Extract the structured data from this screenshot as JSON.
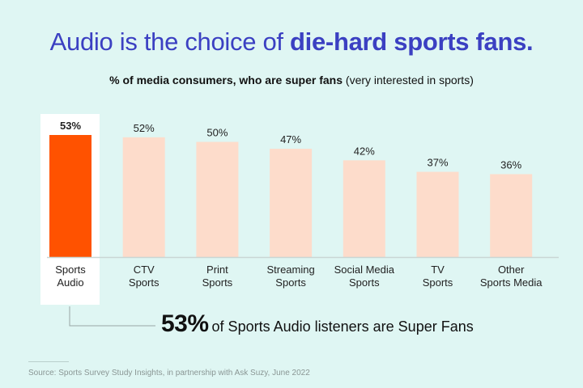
{
  "title": {
    "regular": "Audio is the choice of ",
    "bold": "die-hard sports fans."
  },
  "subtitle": {
    "bold": "% of media consumers, who are super fans",
    "regular": " (very interested in sports)"
  },
  "chart_data": {
    "type": "bar",
    "categories": [
      [
        "Sports",
        "Audio"
      ],
      [
        "CTV",
        "Sports"
      ],
      [
        "Print",
        "Sports"
      ],
      [
        "Streaming",
        "Sports"
      ],
      [
        "Social Media",
        "Sports"
      ],
      [
        "TV",
        "Sports"
      ],
      [
        "Other",
        "Sports Media"
      ]
    ],
    "values": [
      53,
      52,
      50,
      47,
      42,
      37,
      36
    ],
    "data_labels": [
      "53%",
      "52%",
      "50%",
      "47%",
      "42%",
      "37%",
      "36%"
    ],
    "highlight_index": 0,
    "colors": {
      "highlight": "#ff5200",
      "default": "#fddccb",
      "highlight_background": "#ffffff",
      "title": "#3b40c2"
    },
    "ylim": [
      0,
      53
    ],
    "grid": false,
    "legend": "none"
  },
  "callout": {
    "value": "53%",
    "text": "of Sports Audio listeners are Super Fans"
  },
  "source": "Source: Sports Survey Study Insights, in partnership with Ask Suzy, June 2022"
}
